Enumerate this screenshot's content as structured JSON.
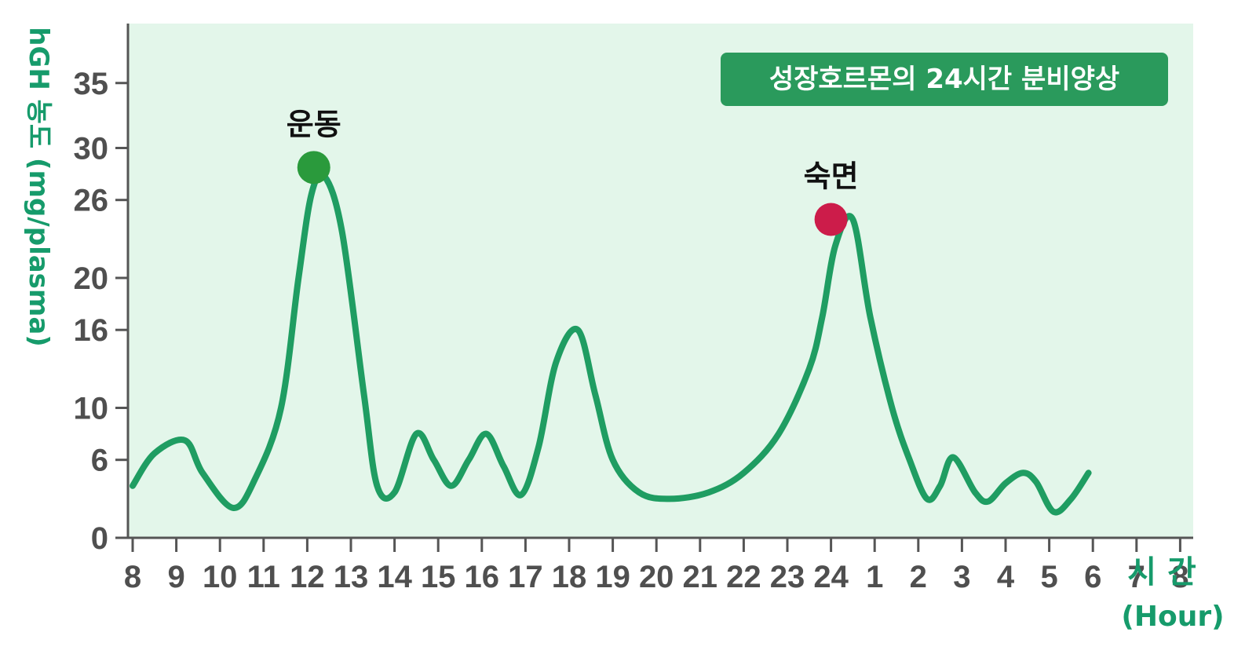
{
  "chart_data": {
    "type": "line",
    "title": "성장호르몬의 24시간 분비양상",
    "ylabel": "hGH 농도 (mg/plasma)",
    "xlabel_lines": [
      "시 간",
      "(Hour)"
    ],
    "categories": [
      "8",
      "9",
      "10",
      "11",
      "12",
      "13",
      "14",
      "15",
      "16",
      "17",
      "18",
      "19",
      "20",
      "21",
      "22",
      "23",
      "24",
      "1",
      "2",
      "3",
      "4",
      "5",
      "6",
      "7",
      "8"
    ],
    "yticks": [
      0,
      6,
      10,
      16,
      20,
      26,
      30,
      35
    ],
    "ylim": [
      0,
      38
    ],
    "series": [
      {
        "color": "#1f9d62",
        "x": [
          8,
          8.5,
          9.2,
          9.6,
          10.3,
          10.8,
          11.4,
          11.8,
          12.1,
          12.4,
          12.8,
          13.3,
          13.6,
          14.0,
          14.5,
          14.9,
          15.3,
          15.7,
          16.1,
          16.5,
          16.9,
          17.3,
          17.7,
          18.2,
          18.6,
          19.0,
          19.6,
          20.3,
          21.2,
          22.0,
          22.8,
          23.5,
          23.8,
          24.1,
          24.5,
          24.9,
          25.4,
          25.8,
          26.2,
          26.5,
          26.8,
          27.3,
          27.6,
          28.0,
          28.4,
          28.7,
          29.1,
          29.5,
          29.9
        ],
        "values": [
          4,
          6.5,
          7.5,
          5,
          2.3,
          4.5,
          10,
          20,
          26.5,
          27.8,
          23.5,
          11,
          4,
          3.5,
          8,
          6,
          4,
          6,
          8,
          5.5,
          3.3,
          7,
          13.5,
          16,
          11,
          6,
          3.5,
          3.0,
          3.5,
          5.0,
          8.0,
          13,
          17,
          22.5,
          24.5,
          17,
          10,
          6,
          3,
          4,
          6.2,
          3.5,
          2.8,
          4.2,
          5.0,
          4.3,
          2.0,
          3.0,
          5.0
        ]
      }
    ],
    "annotations": [
      {
        "label": "운동",
        "x": 12.15,
        "y": 28.5,
        "color": "#2a9a3c"
      },
      {
        "label": "숙면",
        "x": 24.0,
        "y": 24.5,
        "color": "#cc1c4a"
      }
    ],
    "colors": {
      "plot_background": "#e3f6ea",
      "line": "#1f9d62",
      "title_box": "#2a9a5c",
      "axis_title": "#169b6b"
    }
  }
}
